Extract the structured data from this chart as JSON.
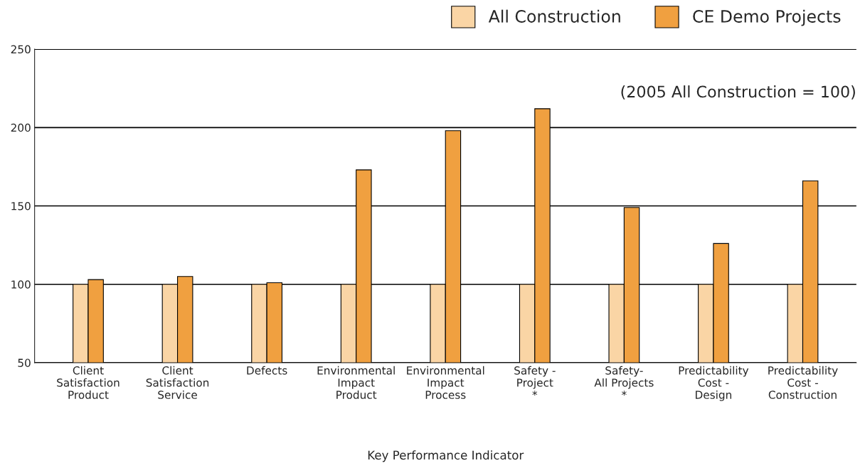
{
  "chart_data": {
    "type": "bar",
    "xlabel": "Key Performance Indicator",
    "categories": [
      "Client\nSatisfaction\nProduct",
      "Client\nSatisfaction\nService",
      "Defects",
      "Environmental\nImpact\nProduct",
      "Environmental\nImpact\nProcess",
      "Safety -\nProject\n*",
      "Safety-\nAll Projects\n*",
      "Predictability\nCost -\nDesign",
      "Predictability\nCost -\nConstruction"
    ],
    "series": [
      {
        "name": "All Construction",
        "color": "#fad5a5",
        "values": [
          100,
          100,
          100,
          100,
          100,
          100,
          100,
          100,
          100
        ]
      },
      {
        "name": "CE Demo Projects",
        "color": "#f0a040",
        "values": [
          103,
          105,
          101,
          173,
          198,
          212,
          149,
          126,
          166
        ]
      }
    ],
    "ylim": [
      50,
      250
    ],
    "yticks": [
      50,
      100,
      150,
      200,
      250
    ],
    "grid": "y",
    "legend": "top right",
    "annotations": [
      "(2005 All Construction = 100)"
    ]
  }
}
